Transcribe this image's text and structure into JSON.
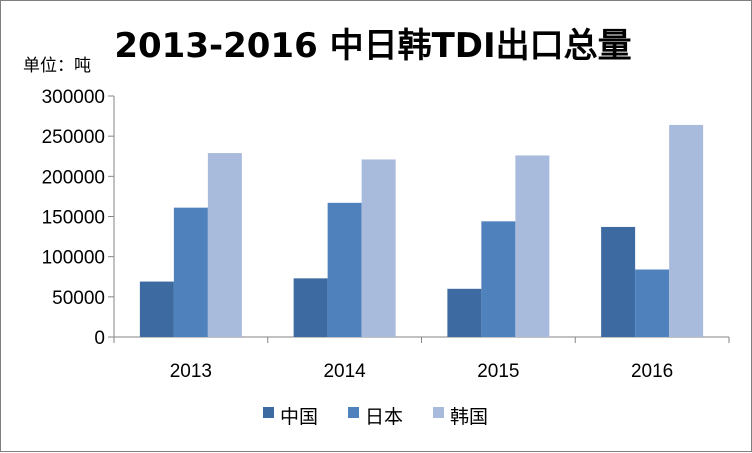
{
  "chart_data": {
    "type": "bar",
    "title": "2013-2016 中日韩TDI出口总量",
    "unit_label": "单位：吨",
    "categories": [
      "2013",
      "2014",
      "2015",
      "2016"
    ],
    "series": [
      {
        "name": "中国",
        "color": "#3d6aa0",
        "values": [
          69000,
          73000,
          60000,
          137000
        ]
      },
      {
        "name": "日本",
        "color": "#4f81bd",
        "values": [
          161000,
          167000,
          144000,
          84000
        ]
      },
      {
        "name": "韩国",
        "color": "#a9bbdc",
        "values": [
          229000,
          221000,
          226000,
          264000
        ]
      }
    ],
    "ylim": [
      0,
      300000
    ],
    "yticks": [
      "0",
      "50000",
      "100000",
      "150000",
      "200000",
      "250000",
      "300000"
    ],
    "grid": false,
    "legend_position": "bottom"
  }
}
